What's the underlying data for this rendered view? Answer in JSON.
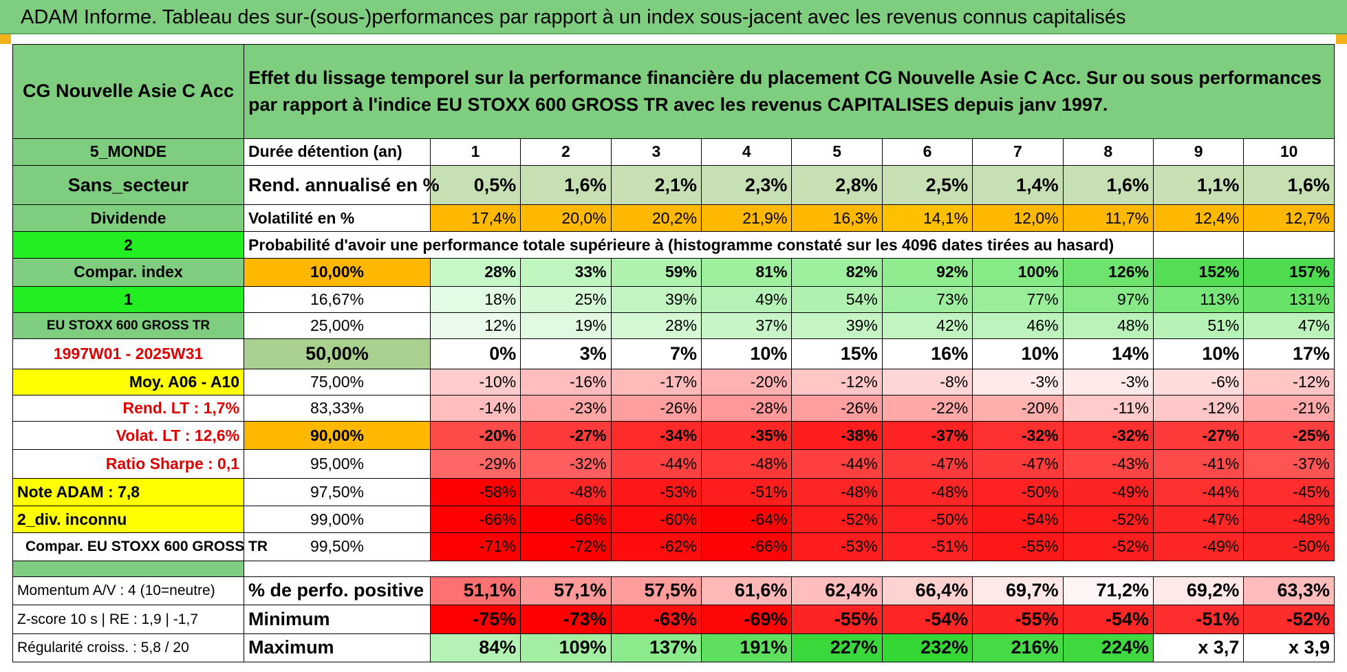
{
  "title": "ADAM Informe. Tableau des sur-(sous-)performances par rapport à un index sous-jacent avec les revenus connus capitalisés",
  "header": {
    "fund_name": "CG Nouvelle Asie C Acc",
    "description": "Effet du lissage temporel sur la performance financière du placement CG Nouvelle Asie C Acc. Sur ou sous performances par rapport à l'indice EU STOXX 600 GROSS TR avec les revenus CAPITALISES depuis janv 1997."
  },
  "left_labels": {
    "region": "5_MONDE",
    "sector": "Sans_secteur",
    "dividend": "Dividende",
    "num2": "2",
    "compar_index": "Compar. index",
    "num1": "1",
    "index_name": "EU STOXX 600 GROSS TR",
    "period": "1997W01 - 2025W31",
    "moy": "Moy. A06 - A10",
    "rend_lt": "Rend. LT :    1,7%",
    "volat_lt": "Volat. LT :    12,6%",
    "sharpe": "Ratio Sharpe :     0,1",
    "note": "Note ADAM : 7,8",
    "div": "2_div. inconnu",
    "compar_eu": "Compar. EU STOXX 600 GROSS TR",
    "momentum": "Momentum A/V : 4 (10=neutre)",
    "zscore": "Z-score 10 s | RE : 1,9 | -1,7",
    "regularite": "Régularité croiss. : 5,8 / 20"
  },
  "row_labels": {
    "duration": "Durée détention (an)",
    "rend": "Rend. annualisé en %",
    "vol": "Volatilité en %",
    "prob": "Probabilité d'avoir une performance totale supérieure à (histogramme constaté sur les 4096 dates tirées au hasard)",
    "pos": "% de perfo. positive",
    "min": "Minimum",
    "max": "Maximum"
  },
  "years": [
    "1",
    "2",
    "3",
    "4",
    "5",
    "6",
    "7",
    "8",
    "9",
    "10"
  ],
  "rend_values": [
    "0,5%",
    "1,6%",
    "2,1%",
    "2,3%",
    "2,8%",
    "2,5%",
    "1,4%",
    "1,6%",
    "1,1%",
    "1,6%"
  ],
  "vol_values": [
    "17,4%",
    "20,0%",
    "20,2%",
    "21,9%",
    "16,3%",
    "14,1%",
    "12,0%",
    "11,7%",
    "12,4%",
    "12,7%"
  ],
  "prob_rows": [
    {
      "pct": "10,00%",
      "values": [
        "28%",
        "33%",
        "59%",
        "81%",
        "82%",
        "92%",
        "100%",
        "126%",
        "152%",
        "157%"
      ]
    },
    {
      "pct": "16,67%",
      "values": [
        "18%",
        "25%",
        "39%",
        "49%",
        "54%",
        "73%",
        "77%",
        "97%",
        "113%",
        "131%"
      ]
    },
    {
      "pct": "25,00%",
      "values": [
        "12%",
        "19%",
        "28%",
        "37%",
        "39%",
        "42%",
        "46%",
        "48%",
        "51%",
        "47%"
      ]
    },
    {
      "pct": "50,00%",
      "values": [
        "0%",
        "3%",
        "7%",
        "10%",
        "15%",
        "16%",
        "10%",
        "14%",
        "10%",
        "17%"
      ]
    },
    {
      "pct": "75,00%",
      "values": [
        "-10%",
        "-16%",
        "-17%",
        "-20%",
        "-12%",
        "-8%",
        "-3%",
        "-3%",
        "-6%",
        "-12%"
      ]
    },
    {
      "pct": "83,33%",
      "values": [
        "-14%",
        "-23%",
        "-26%",
        "-28%",
        "-26%",
        "-22%",
        "-20%",
        "-11%",
        "-12%",
        "-21%"
      ]
    },
    {
      "pct": "90,00%",
      "values": [
        "-20%",
        "-27%",
        "-34%",
        "-35%",
        "-38%",
        "-37%",
        "-32%",
        "-32%",
        "-27%",
        "-25%"
      ]
    },
    {
      "pct": "95,00%",
      "values": [
        "-29%",
        "-32%",
        "-44%",
        "-48%",
        "-44%",
        "-47%",
        "-47%",
        "-43%",
        "-41%",
        "-37%"
      ]
    },
    {
      "pct": "97,50%",
      "values": [
        "-58%",
        "-48%",
        "-53%",
        "-51%",
        "-48%",
        "-48%",
        "-50%",
        "-49%",
        "-44%",
        "-45%"
      ]
    },
    {
      "pct": "99,00%",
      "values": [
        "-66%",
        "-66%",
        "-60%",
        "-64%",
        "-52%",
        "-50%",
        "-54%",
        "-52%",
        "-47%",
        "-48%"
      ]
    },
    {
      "pct": "99,50%",
      "values": [
        "-71%",
        "-72%",
        "-62%",
        "-66%",
        "-53%",
        "-51%",
        "-55%",
        "-52%",
        "-49%",
        "-50%"
      ]
    }
  ],
  "pos_values": [
    "51,1%",
    "57,1%",
    "57,5%",
    "61,6%",
    "62,4%",
    "66,4%",
    "69,7%",
    "71,2%",
    "69,2%",
    "63,3%"
  ],
  "min_values": [
    "-75%",
    "-73%",
    "-63%",
    "-69%",
    "-55%",
    "-54%",
    "-55%",
    "-54%",
    "-51%",
    "-52%"
  ],
  "max_values": [
    "84%",
    "109%",
    "137%",
    "191%",
    "227%",
    "232%",
    "216%",
    "224%",
    "x 3,7",
    "x 3,9"
  ],
  "colors": {
    "rend_bg": [
      "#c6e0b4",
      "#c6e0b4",
      "#c6e0b4",
      "#c6e0b4",
      "#c6e0b4",
      "#c6e0b4",
      "#c6e0b4",
      "#c6e0b4",
      "#c6e0b4",
      "#c6e0b4"
    ],
    "vol_bg": [
      "#ffb800",
      "#ffb800",
      "#ffb800",
      "#ffb800",
      "#ffb800",
      "#ffc000",
      "#ffb800",
      "#ffb800",
      "#ffb800",
      "#ffb800"
    ],
    "prob_pct_bg": [
      "#ffb800",
      "#ffffff",
      "#ffffff",
      "#a9d08e",
      "#ffffff",
      "#ffffff",
      "#ffb800",
      "#ffffff",
      "#ffffff",
      "#ffffff",
      "#ffffff"
    ],
    "prob_bg": [
      [
        "#c6f7c6",
        "#bff5bf",
        "#aef2ae",
        "#9ef09e",
        "#9cef9c",
        "#8fec8f",
        "#86ea86",
        "#6ee36e",
        "#55dd55",
        "#4fdb4f"
      ],
      [
        "#e2fbe2",
        "#d5f8d5",
        "#c2f4c2",
        "#b5f2b5",
        "#b0f1b0",
        "#9fed9f",
        "#9aed9a",
        "#88e988",
        "#78e678",
        "#68e368"
      ],
      [
        "#ebfbeb",
        "#e0f9e0",
        "#d4f7d4",
        "#c8f5c8",
        "#c5f4c5",
        "#c1f4c1",
        "#bdf3bd",
        "#baf2ba",
        "#b7f2b7",
        "#bbf3bb"
      ],
      [
        "#ffffff",
        "#ffffff",
        "#ffffff",
        "#ffffff",
        "#ffffff",
        "#ffffff",
        "#ffffff",
        "#ffffff",
        "#ffffff",
        "#ffffff"
      ],
      [
        "#ffcccc",
        "#ffbdbd",
        "#ffbaba",
        "#ffb2b2",
        "#ffc6c6",
        "#ffd6d6",
        "#ffeaea",
        "#ffeaea",
        "#ffdcdc",
        "#ffc6c6"
      ],
      [
        "#ffbdbd",
        "#ffa6a6",
        "#ff9e9e",
        "#ff9999",
        "#ff9e9e",
        "#ffa8a8",
        "#ffaeae",
        "#ffcbcb",
        "#ffc8c8",
        "#ffaaaa"
      ],
      [
        "#ff4a4a",
        "#ff3a3a",
        "#ff2a2a",
        "#ff2626",
        "#ff1e1e",
        "#ff2222",
        "#ff3030",
        "#ff3030",
        "#ff3a3a",
        "#ff4040"
      ],
      [
        "#ff6666",
        "#ff5e5e",
        "#ff4040",
        "#ff3838",
        "#ff4040",
        "#ff3a3a",
        "#ff3a3a",
        "#ff4444",
        "#ff4a4a",
        "#ff5454"
      ],
      [
        "#ff0000",
        "#ff2626",
        "#ff1818",
        "#ff1e1e",
        "#ff2626",
        "#ff2626",
        "#ff2222",
        "#ff2424",
        "#ff3030",
        "#ff2e2e"
      ],
      [
        "#ff0000",
        "#ff0000",
        "#ff0c0c",
        "#ff0404",
        "#ff1e1e",
        "#ff2222",
        "#ff1818",
        "#ff1e1e",
        "#ff2626",
        "#ff2424"
      ],
      [
        "#ff0000",
        "#ff0000",
        "#ff0c0c",
        "#ff0404",
        "#ff1e1e",
        "#ff2222",
        "#ff1818",
        "#ff1e1e",
        "#ff2626",
        "#ff2424"
      ]
    ],
    "pos_bg": [
      "#ff7070",
      "#ff9a9a",
      "#ff9c9c",
      "#ffb8b8",
      "#ffbdbd",
      "#ffd2d2",
      "#ffe8e8",
      "#fff4f4",
      "#ffe8e8",
      "#ffbcbc"
    ],
    "min_bg": [
      "#ff0000",
      "#ff0000",
      "#ff1010",
      "#ff0606",
      "#ff2424",
      "#ff2626",
      "#ff2424",
      "#ff2626",
      "#ff2e2e",
      "#ff2c2c"
    ],
    "max_bg": [
      "#b5f2b5",
      "#a2ef a2",
      "#8bea8b",
      "#5ee05e",
      "#3ad83a",
      "#35d735",
      "#46db46",
      "#3fd93f",
      "#ffffff",
      "#ffffff"
    ]
  }
}
